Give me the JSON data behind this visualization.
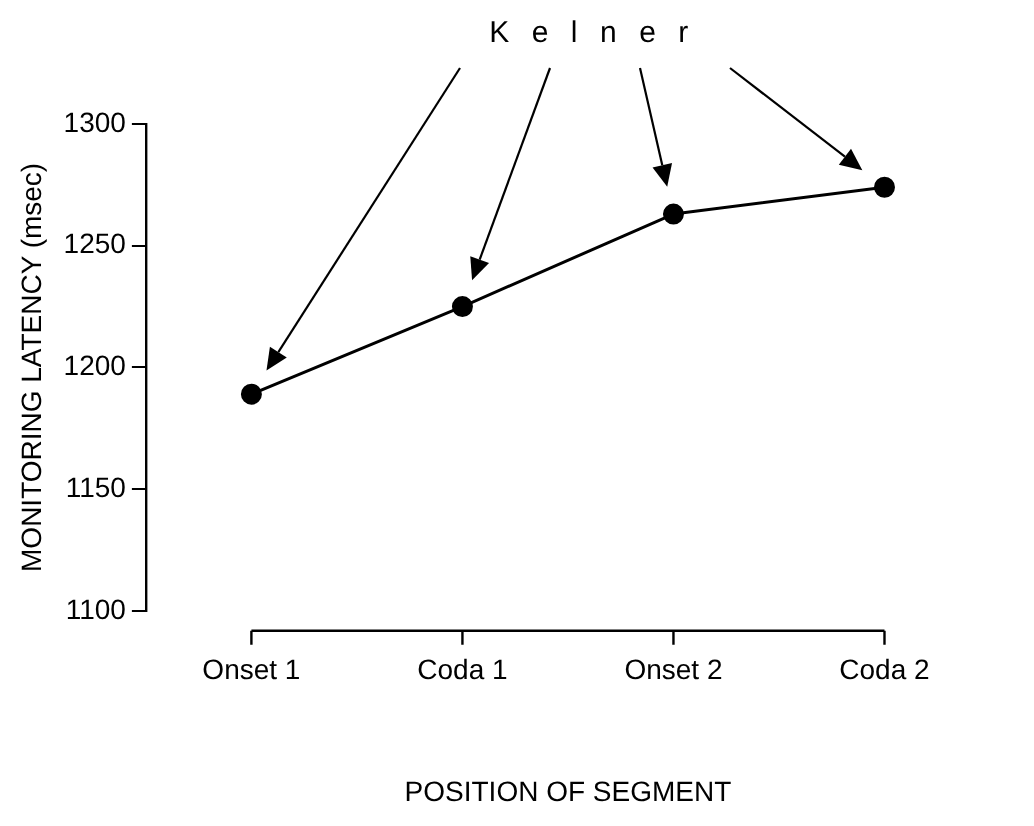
{
  "chart_data": {
    "type": "line",
    "xlabel": "POSITION OF SEGMENT",
    "ylabel": "MONITORING LATENCY (msec)",
    "categories": [
      "Onset 1",
      "Coda 1",
      "Onset 2",
      "Coda 2"
    ],
    "series": [
      {
        "color": "#000000",
        "values": [
          1189,
          1225,
          1263,
          1274
        ]
      }
    ],
    "ylim": [
      1100,
      1300
    ],
    "yticks": [
      1100,
      1150,
      1200,
      1250,
      1300
    ],
    "grid": false,
    "legend": false,
    "marker": "circle",
    "line_style": "solid",
    "annotations": [
      "Kelner"
    ]
  }
}
